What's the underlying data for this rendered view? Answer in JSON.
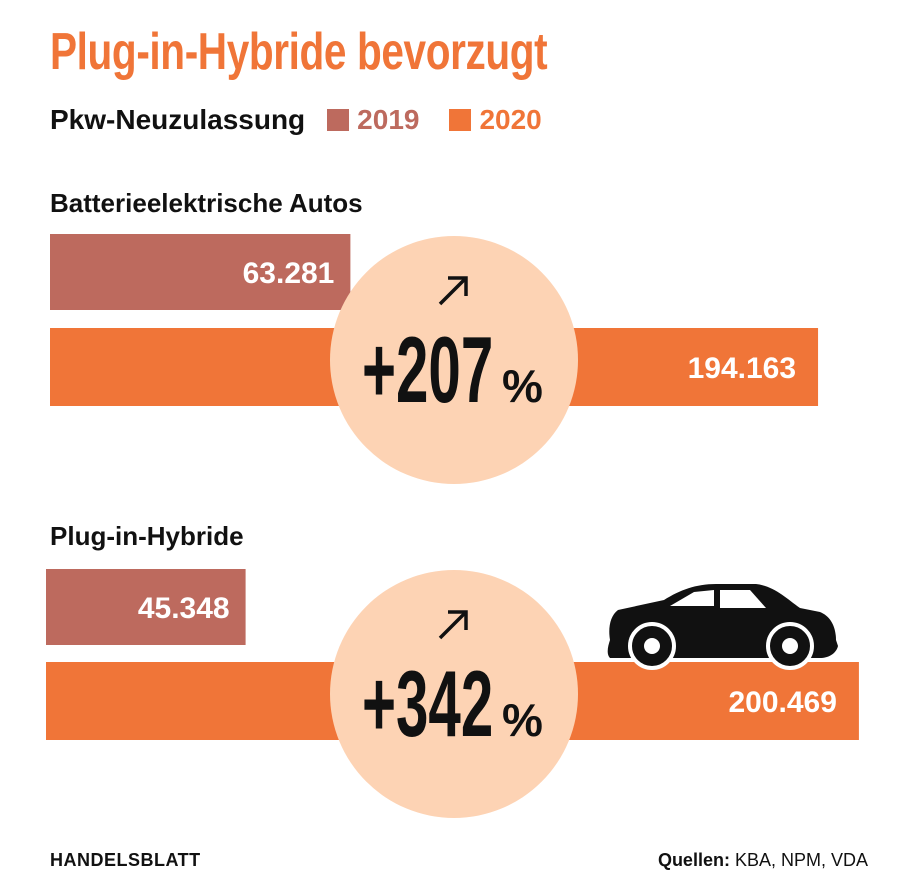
{
  "title": "Plug-in-Hybride bevorzugt",
  "legend": {
    "label": "Pkw-Neuzulassung",
    "items": [
      {
        "name": "2019",
        "color": "#bd6a5e"
      },
      {
        "name": "2020",
        "color": "#f07538"
      }
    ]
  },
  "chart_data": [
    {
      "type": "bar",
      "title": "Batterieelektrische Autos",
      "categories": [
        "2019",
        "2020"
      ],
      "values": [
        63281,
        194163
      ],
      "value_labels": [
        "63.281",
        "194.163"
      ],
      "change": {
        "sign": "+",
        "number": "207",
        "unit": "%"
      }
    },
    {
      "type": "bar",
      "title": "Plug-in-Hybride",
      "categories": [
        "2019",
        "2020"
      ],
      "values": [
        45348,
        200469
      ],
      "value_labels": [
        "45.348",
        "200.469"
      ],
      "change": {
        "sign": "+",
        "number": "342",
        "unit": "%"
      }
    }
  ],
  "colors": {
    "bar_2019": "#bd6a5e",
    "bar_2020": "#f07538",
    "circle": "#fdd3b4",
    "title": "#f07538"
  },
  "icons": [
    "arrow-up-right-icon",
    "car-icon"
  ],
  "footer": {
    "brand": "HANDELSBLATT",
    "source_label": "Quellen:",
    "source_text": " KBA, NPM, VDA"
  }
}
